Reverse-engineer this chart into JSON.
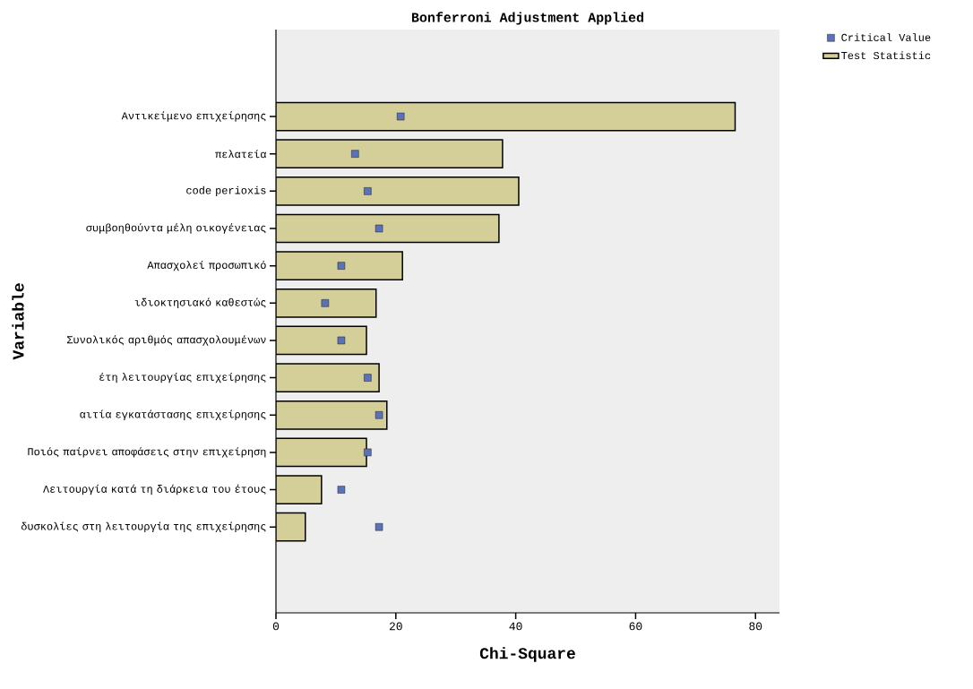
{
  "chart_data": {
    "type": "bar",
    "orientation": "horizontal",
    "title": "Bonferroni Adjustment Applied",
    "xlabel": "Chi-Square",
    "ylabel": "Variable",
    "categories": [
      "Αντικείμενο επιχείρησης",
      "πελατεία",
      "code perioxis",
      "συμβοηθούντα μέλη οικογένειας",
      "Απασχολεί προσωπικό",
      "ιδιοκτησιακό καθεστώς",
      "Συνολικός αριθμός απασχολουμένων",
      "έτη λειτουργίας επιχείρησης",
      "αιτία εγκατάστασης επιχείρησης",
      "Ποιός παίρνει αποφάσεις στην επιχείρηση",
      "Λειτουργία κατά τη διάρκεια του έτους",
      "δυσκολίες στη λειτουργία της επιχείρησης"
    ],
    "series": [
      {
        "name": "Test Statistic",
        "color": "#d4cf99",
        "values": [
          76.6,
          37.8,
          40.5,
          37.2,
          21.1,
          16.7,
          15.1,
          17.2,
          18.5,
          15.1,
          7.6,
          4.9
        ]
      },
      {
        "name": "Critical Value",
        "type": "scatter",
        "marker": "square",
        "color": "#5b72b8",
        "values": [
          20.8,
          13.2,
          15.3,
          17.2,
          10.9,
          8.2,
          10.9,
          15.3,
          17.2,
          15.3,
          10.9,
          17.2
        ]
      }
    ],
    "xlim": [
      0,
      84
    ],
    "xticks": [
      0,
      20,
      40,
      60,
      80
    ],
    "legend": "top right"
  }
}
